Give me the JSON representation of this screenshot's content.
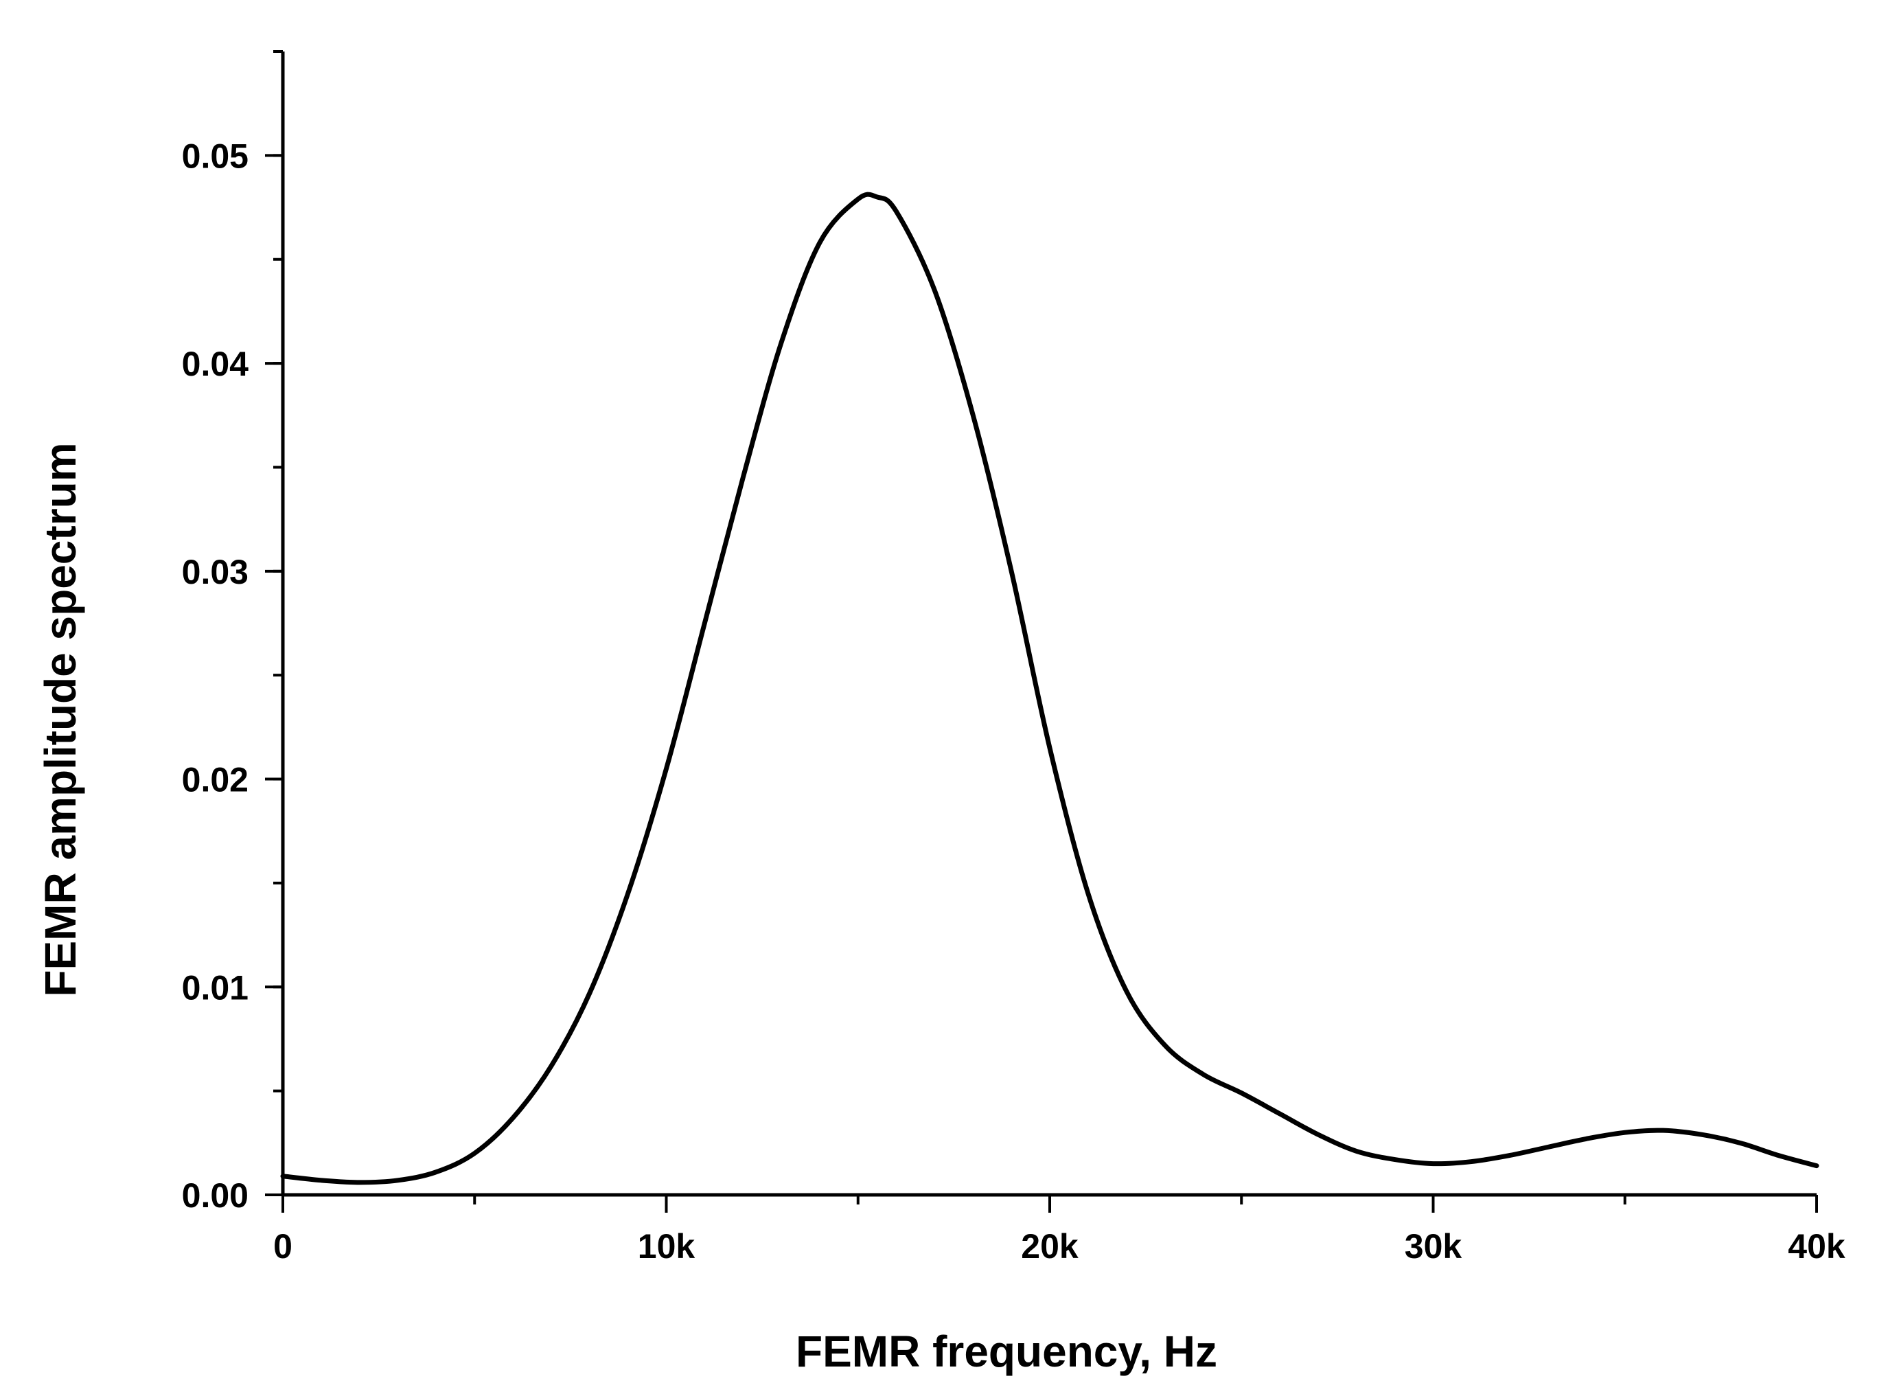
{
  "chart_data": {
    "type": "line",
    "title": "",
    "xlabel": "FEMR frequency, Hz",
    "ylabel": "FEMR amplitude spectrum",
    "xlim": [
      0,
      40000
    ],
    "ylim": [
      0,
      0.055
    ],
    "x_ticks": [
      {
        "value": 0,
        "label": "0"
      },
      {
        "value": 10000,
        "label": "10k"
      },
      {
        "value": 20000,
        "label": "20k"
      },
      {
        "value": 30000,
        "label": "30k"
      },
      {
        "value": 40000,
        "label": "40k"
      }
    ],
    "y_ticks": [
      {
        "value": 0,
        "label": "0.00"
      },
      {
        "value": 0.01,
        "label": "0.01"
      },
      {
        "value": 0.02,
        "label": "0.02"
      },
      {
        "value": 0.03,
        "label": "0.03"
      },
      {
        "value": 0.04,
        "label": "0.04"
      },
      {
        "value": 0.05,
        "label": "0.05"
      }
    ],
    "x_minor_step": 5000,
    "y_minor_step": 0.005,
    "grid": false,
    "line_color": "#000000",
    "series": [
      {
        "x": [
          0,
          1000,
          2000,
          3000,
          4000,
          5000,
          6000,
          7000,
          8000,
          9000,
          10000,
          11000,
          12000,
          13000,
          14000,
          15000,
          15500,
          16000,
          17000,
          18000,
          19000,
          20000,
          21000,
          22000,
          23000,
          24000,
          25000,
          26000,
          27000,
          28000,
          29000,
          30000,
          31000,
          32000,
          33000,
          34000,
          35000,
          36000,
          37000,
          38000,
          39000,
          40000
        ],
        "y": [
          0.0009,
          0.0007,
          0.0006,
          0.0007,
          0.0011,
          0.002,
          0.0037,
          0.0062,
          0.0097,
          0.0145,
          0.0205,
          0.0275,
          0.0345,
          0.041,
          0.0458,
          0.0479,
          0.048,
          0.0473,
          0.0435,
          0.0375,
          0.03,
          0.0215,
          0.0145,
          0.0098,
          0.0072,
          0.0058,
          0.0049,
          0.0039,
          0.0029,
          0.0021,
          0.0017,
          0.0015,
          0.0016,
          0.0019,
          0.0023,
          0.0027,
          0.003,
          0.0031,
          0.0029,
          0.0025,
          0.0019,
          0.0014
        ]
      }
    ]
  }
}
